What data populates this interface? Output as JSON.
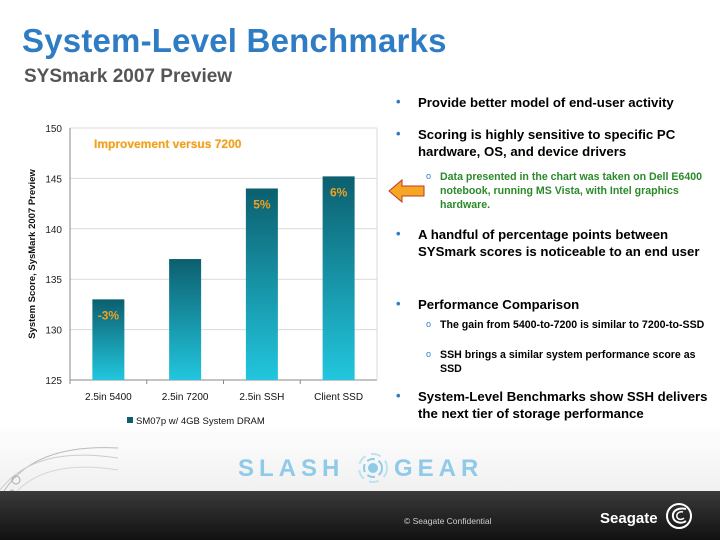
{
  "slide": {
    "title": "System-Level Benchmarks",
    "subtitle": "SYSmark 2007 Preview"
  },
  "chart_data": {
    "type": "bar",
    "categories": [
      "2.5in 5400",
      "2.5in 7200",
      "2.5in SSH",
      "Client SSD"
    ],
    "series": [
      {
        "name": "SM07p w/ 4GB System DRAM",
        "values": [
          133,
          137,
          144,
          145.2
        ]
      }
    ],
    "data_labels": [
      "-3%",
      "",
      "5%",
      "6%"
    ],
    "annotation": "Improvement versus 7200",
    "ylabel": "System Score, SysMark 2007 Preview",
    "ylim": [
      125,
      150
    ],
    "yticks": [
      "125",
      "130",
      "135",
      "140",
      "145",
      "150"
    ],
    "legend_position": "bottom",
    "grid": true,
    "bar_color_top": "#0c5f6e",
    "bar_color_bottom": "#22c6de"
  },
  "bullets": [
    {
      "text": "Provide better  model of end-user activity"
    },
    {
      "text": "Scoring is highly sensitive to specific PC hardware, OS, and device drivers"
    },
    {
      "text": "A handful of percentage points between SYSmark scores is noticeable to an end user"
    },
    {
      "text": "Performance Comparison"
    },
    {
      "text": "System-Level Benchmarks show SSH delivers the next tier of storage performance"
    }
  ],
  "subbullets": [
    "Data presented in the chart was taken on Dell E6400 notebook, running MS Vista, with Intel graphics hardware.",
    "The gain from 5400-to-7200 is similar to 7200-to-SSD",
    "SSH brings a similar system performance score as SSD"
  ],
  "watermark": {
    "left": "SLASH",
    "right": "GEAR"
  },
  "footer": {
    "confidential": "© Seagate Confidential",
    "brand": "Seagate"
  },
  "colors": {
    "title": "#2e7dc4",
    "accent": "#2e7dc4",
    "annotation": "#f0a020",
    "note_green": "#2a8a2a",
    "arrow": "#f5a623"
  }
}
